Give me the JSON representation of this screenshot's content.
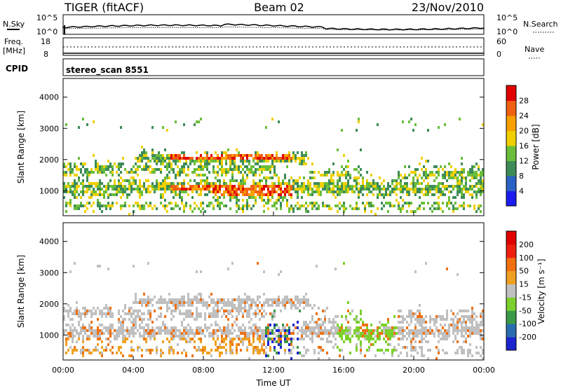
{
  "header": {
    "radar": "TIGER (fitACF)",
    "beam": "Beam 02",
    "date": "23/Nov/2010"
  },
  "status_panels": {
    "nsky_label": "N.Sky",
    "nsearch_label": "N.Search",
    "noise_ticks": [
      "10^5",
      "10^0"
    ],
    "freq_label_1": "Freq.",
    "freq_label_2": "[MHz]",
    "freq_ticks": [
      "18",
      "8"
    ],
    "nave_label": "Nave",
    "nave_ticks": [
      "60",
      "0"
    ],
    "cpid_label": "CPID",
    "cpid_value": "stereo_scan 8551"
  },
  "chart_data": [
    {
      "type": "heatmap",
      "name": "power-panel",
      "ylabel": "Slant Range [km]",
      "ylim": [
        200,
        4600
      ],
      "yticks": [
        1000,
        2000,
        3000,
        4000
      ],
      "xlim": [
        0,
        24
      ],
      "colorbar": {
        "label": "Power [dB]",
        "ticks": [
          "4",
          "8",
          "12",
          "16",
          "20",
          "24",
          "28"
        ],
        "colors": [
          "#1c1cf0",
          "#2a62c4",
          "#3d8c58",
          "#6abe3a",
          "#f0d000",
          "#f8a000",
          "#f06010",
          "#e00000"
        ]
      }
    },
    {
      "type": "heatmap",
      "name": "velocity-panel",
      "ylabel": "Slant Range [km]",
      "ylim": [
        200,
        4600
      ],
      "yticks": [
        1000,
        2000,
        3000,
        4000
      ],
      "xlim": [
        0,
        24
      ],
      "xlabel": "Time UT",
      "xticks": [
        "00:00",
        "04:00",
        "08:00",
        "12:00",
        "16:00",
        "20:00",
        "00:00"
      ],
      "colorbar": {
        "label": "Velocity [m s⁻¹]",
        "ticks": [
          "200",
          "100",
          "50",
          "15",
          "-15",
          "-50",
          "-100",
          "-200"
        ],
        "colors": [
          "#1c24d0",
          "#2a6cb0",
          "#3a9a48",
          "#7cd02c",
          "#c0c0c0",
          "#f0a020",
          "#f07010",
          "#f02010",
          "#e00000"
        ]
      }
    }
  ]
}
